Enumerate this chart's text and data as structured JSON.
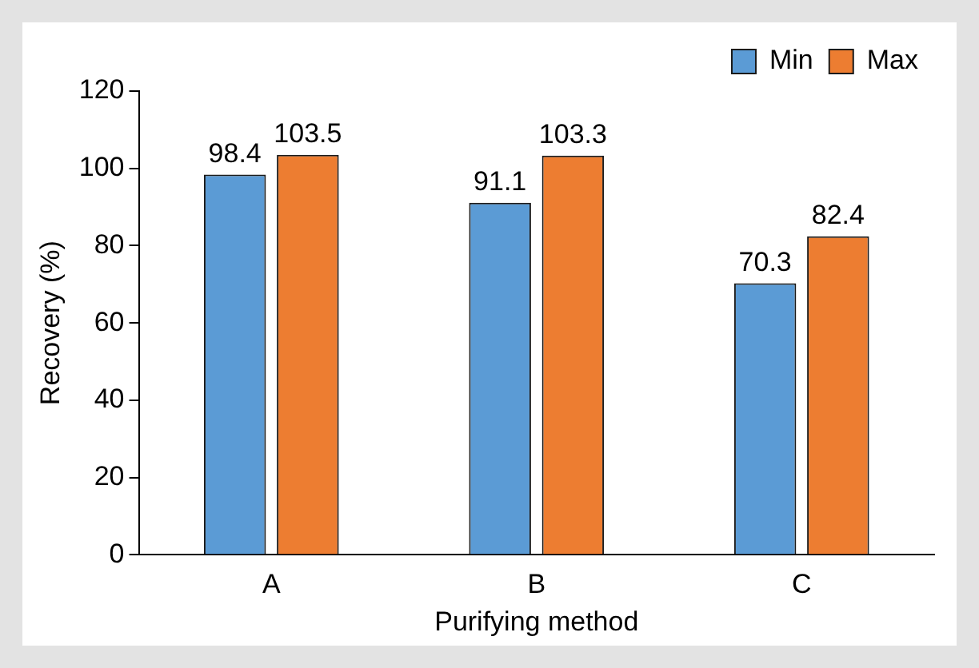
{
  "chart_data": {
    "type": "bar",
    "xlabel": "Purifying method",
    "ylabel": "Recovery (%)",
    "categories": [
      "A",
      "B",
      "C"
    ],
    "series": [
      {
        "name": "Min",
        "color": "#5b9bd5",
        "values": [
          98.4,
          91.1,
          70.3
        ]
      },
      {
        "name": "Max",
        "color": "#ed7d31",
        "values": [
          103.5,
          103.3,
          82.4
        ]
      }
    ],
    "ylim": [
      0,
      120
    ],
    "yticks": [
      0,
      20,
      40,
      60,
      80,
      100,
      120
    ],
    "grid": false,
    "legend": "top right",
    "data_labels": true
  }
}
